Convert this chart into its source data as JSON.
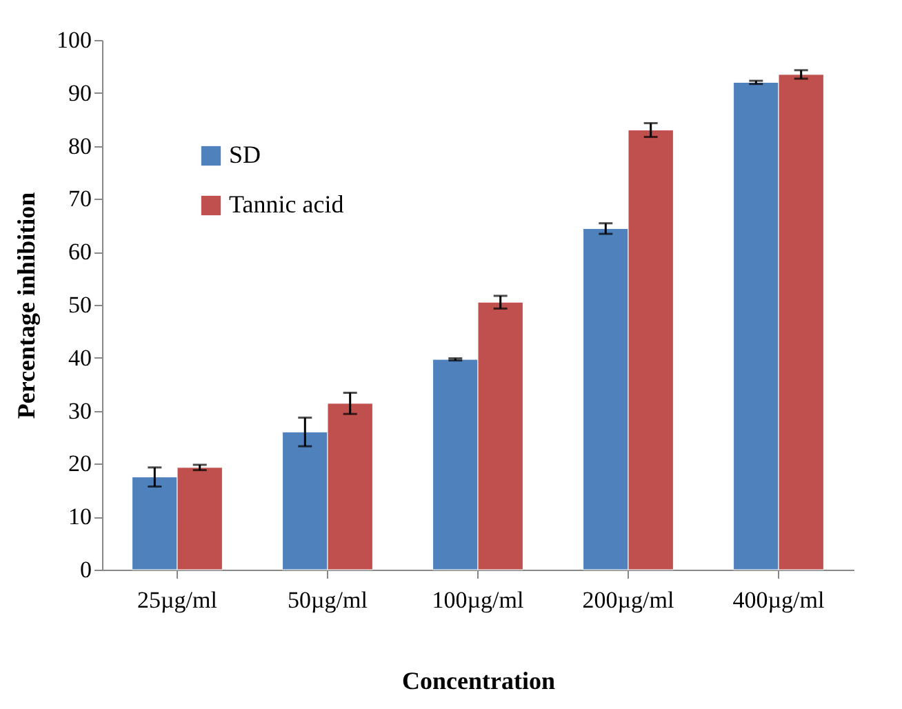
{
  "chart_data": {
    "type": "bar",
    "xlabel": "Concentration",
    "ylabel": "Percentage inhibition",
    "categories": [
      "25µg/ml",
      "50µg/ml",
      "100µg/ml",
      "200µg/ml",
      "400µg/ml"
    ],
    "series": [
      {
        "name": "SD",
        "color": "#4f81bd",
        "values": [
          17.5,
          26,
          39.7,
          64.4,
          92
        ],
        "errors": [
          1.8,
          2.7,
          0.2,
          1,
          0.3
        ]
      },
      {
        "name": "Tannic acid",
        "color": "#c0504d",
        "values": [
          19.3,
          31.4,
          50.5,
          83,
          93.5
        ],
        "errors": [
          0.5,
          2,
          1.2,
          1.3,
          0.8
        ]
      }
    ],
    "ylim": [
      0,
      100
    ],
    "yticks": [
      0,
      10,
      20,
      30,
      40,
      50,
      60,
      70,
      80,
      90,
      100
    ],
    "grid": false,
    "legend": "top left"
  }
}
